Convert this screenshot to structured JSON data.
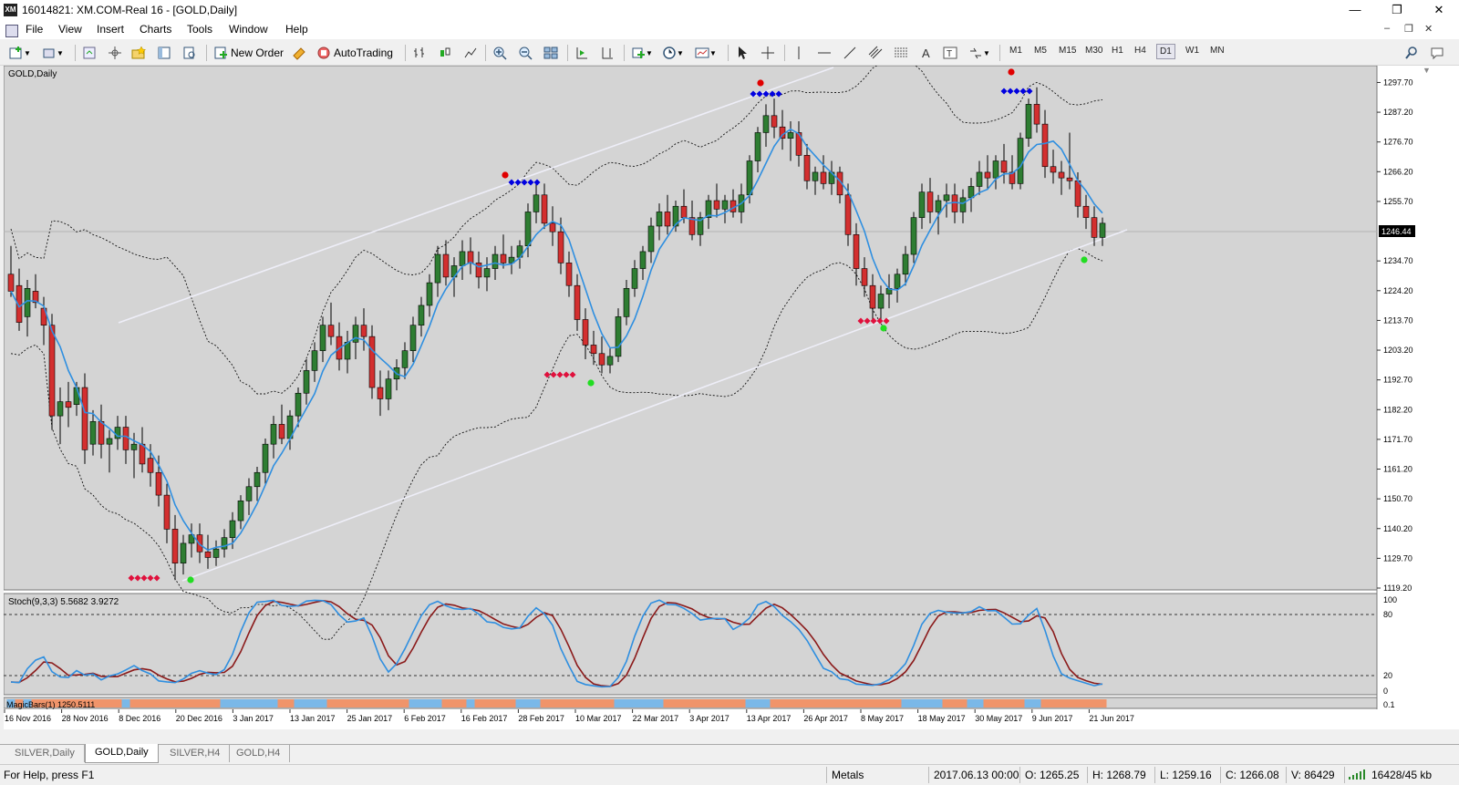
{
  "window": {
    "title": "16014821: XM.COM-Real 16 - [GOLD,Daily]",
    "logo": "XM",
    "minimize_icon": "—",
    "maximize_icon": "❐",
    "close_icon": "✕"
  },
  "menu": {
    "items": [
      "File",
      "View",
      "Insert",
      "Charts",
      "Tools",
      "Window",
      "Help"
    ]
  },
  "toolbar": {
    "new_order_label": "New Order",
    "autotrading_label": "AutoTrading",
    "timeframes": [
      "M1",
      "M5",
      "M15",
      "M30",
      "H1",
      "H4",
      "D1",
      "W1",
      "MN"
    ],
    "active_timeframe": "D1"
  },
  "chart": {
    "symbol_label": "GOLD,Daily",
    "current_price_label": "1246.44",
    "price_ticks": [
      "1297.70",
      "1287.20",
      "1276.70",
      "1266.20",
      "1255.70",
      "1246.44",
      "1234.70",
      "1224.20",
      "1213.70",
      "1203.20",
      "1192.70",
      "1182.20",
      "1171.70",
      "1161.20",
      "1150.70",
      "1140.20",
      "1129.70",
      "1119.20"
    ],
    "date_ticks": [
      "16 Nov 2016",
      "28 Nov 2016",
      "8 Dec 2016",
      "20 Dec 2016",
      "3 Jan 2017",
      "13 Jan 2017",
      "25 Jan 2017",
      "6 Feb 2017",
      "16 Feb 2017",
      "28 Feb 2017",
      "10 Mar 2017",
      "22 Mar 2017",
      "3 Apr 2017",
      "13 Apr 2017",
      "26 Apr 2017",
      "8 May 2017",
      "18 May 2017",
      "30 May 2017",
      "9 Jun 2017",
      "21 Jun 2017"
    ],
    "colors": {
      "bg": "#d4d4d4",
      "bull": "#2e7d32",
      "bear": "#d32f2f",
      "ma": "#2f8fe0",
      "stoch_main": "#2f8fe0",
      "stoch_signal": "#8b1a1a",
      "channel": "#eeeef8",
      "dot_red": "#e00000",
      "dot_green": "#22dd22",
      "diamond_blue": "#0000e0",
      "diamond_red": "#e0103c"
    }
  },
  "stoch": {
    "label": "Stoch(9,3,3) 5.5682 3.9272",
    "level_ticks": [
      "100",
      "80",
      "20",
      "0"
    ]
  },
  "magicbars": {
    "label": "MagicBars(1) 1250.5111",
    "level_label": "0.1"
  },
  "tabs": [
    "SILVER,Daily",
    "GOLD,Daily",
    "SILVER,H4",
    "GOLD,H4"
  ],
  "active_tab": "GOLD,Daily",
  "status": {
    "help": "For Help, press F1",
    "group": "Metals",
    "datetime": "2017.06.13 00:00",
    "open": "O: 1265.25",
    "high": "H: 1268.79",
    "low": "L: 1259.16",
    "close": "C: 1266.08",
    "volume": "V: 86429",
    "traffic": "16428/45 kb"
  },
  "chart_data": {
    "type": "candlestick",
    "title": "GOLD,Daily",
    "ylim": [
      1119.2,
      1303
    ],
    "candles": [
      [
        1230,
        1240,
        1222,
        1224
      ],
      [
        1226,
        1232,
        1210,
        1213
      ],
      [
        1215,
        1228,
        1208,
        1225
      ],
      [
        1224,
        1230,
        1218,
        1220
      ],
      [
        1218,
        1222,
        1205,
        1212
      ],
      [
        1212,
        1216,
        1175,
        1180
      ],
      [
        1180,
        1190,
        1170,
        1185
      ],
      [
        1185,
        1192,
        1176,
        1183
      ],
      [
        1184,
        1192,
        1180,
        1190
      ],
      [
        1190,
        1195,
        1163,
        1168
      ],
      [
        1170,
        1182,
        1166,
        1178
      ],
      [
        1178,
        1184,
        1165,
        1170
      ],
      [
        1170,
        1175,
        1160,
        1172
      ],
      [
        1172,
        1180,
        1168,
        1176
      ],
      [
        1176,
        1180,
        1163,
        1168
      ],
      [
        1168,
        1174,
        1158,
        1170
      ],
      [
        1170,
        1176,
        1160,
        1163
      ],
      [
        1165,
        1170,
        1155,
        1160
      ],
      [
        1160,
        1166,
        1148,
        1152
      ],
      [
        1152,
        1156,
        1135,
        1140
      ],
      [
        1140,
        1145,
        1122,
        1128
      ],
      [
        1128,
        1138,
        1124,
        1135
      ],
      [
        1135,
        1142,
        1130,
        1138
      ],
      [
        1138,
        1142,
        1128,
        1132
      ],
      [
        1132,
        1138,
        1126,
        1130
      ],
      [
        1130,
        1136,
        1127,
        1133
      ],
      [
        1133,
        1140,
        1130,
        1137
      ],
      [
        1137,
        1146,
        1133,
        1143
      ],
      [
        1143,
        1152,
        1140,
        1150
      ],
      [
        1150,
        1158,
        1145,
        1155
      ],
      [
        1155,
        1162,
        1150,
        1160
      ],
      [
        1160,
        1172,
        1156,
        1170
      ],
      [
        1170,
        1180,
        1165,
        1177
      ],
      [
        1177,
        1184,
        1170,
        1172
      ],
      [
        1172,
        1182,
        1168,
        1180
      ],
      [
        1180,
        1190,
        1176,
        1188
      ],
      [
        1188,
        1200,
        1184,
        1196
      ],
      [
        1196,
        1206,
        1192,
        1203
      ],
      [
        1203,
        1215,
        1199,
        1212
      ],
      [
        1212,
        1220,
        1205,
        1208
      ],
      [
        1208,
        1213,
        1196,
        1200
      ],
      [
        1200,
        1210,
        1195,
        1206
      ],
      [
        1206,
        1215,
        1200,
        1212
      ],
      [
        1212,
        1218,
        1203,
        1208
      ],
      [
        1208,
        1212,
        1186,
        1190
      ],
      [
        1190,
        1196,
        1180,
        1186
      ],
      [
        1186,
        1196,
        1182,
        1193
      ],
      [
        1193,
        1200,
        1189,
        1197
      ],
      [
        1197,
        1206,
        1193,
        1203
      ],
      [
        1203,
        1215,
        1199,
        1212
      ],
      [
        1212,
        1222,
        1208,
        1219
      ],
      [
        1219,
        1230,
        1215,
        1227
      ],
      [
        1227,
        1240,
        1222,
        1237
      ],
      [
        1237,
        1242,
        1226,
        1229
      ],
      [
        1229,
        1236,
        1222,
        1233
      ],
      [
        1233,
        1242,
        1228,
        1238
      ],
      [
        1238,
        1243,
        1230,
        1234
      ],
      [
        1234,
        1238,
        1225,
        1229
      ],
      [
        1229,
        1236,
        1224,
        1232
      ],
      [
        1232,
        1240,
        1228,
        1237
      ],
      [
        1237,
        1244,
        1232,
        1234
      ],
      [
        1234,
        1240,
        1230,
        1236
      ],
      [
        1236,
        1242,
        1232,
        1240
      ],
      [
        1240,
        1255,
        1236,
        1252
      ],
      [
        1252,
        1262,
        1248,
        1258
      ],
      [
        1258,
        1262,
        1246,
        1248
      ],
      [
        1248,
        1254,
        1240,
        1245
      ],
      [
        1245,
        1250,
        1230,
        1234
      ],
      [
        1234,
        1238,
        1222,
        1226
      ],
      [
        1226,
        1230,
        1210,
        1214
      ],
      [
        1214,
        1218,
        1200,
        1205
      ],
      [
        1205,
        1210,
        1198,
        1202
      ],
      [
        1202,
        1208,
        1195,
        1198
      ],
      [
        1198,
        1204,
        1195,
        1201
      ],
      [
        1201,
        1218,
        1199,
        1215
      ],
      [
        1215,
        1228,
        1212,
        1225
      ],
      [
        1225,
        1235,
        1222,
        1232
      ],
      [
        1232,
        1240,
        1228,
        1238
      ],
      [
        1238,
        1250,
        1234,
        1247
      ],
      [
        1247,
        1255,
        1242,
        1252
      ],
      [
        1252,
        1258,
        1244,
        1247
      ],
      [
        1247,
        1256,
        1245,
        1254
      ],
      [
        1254,
        1260,
        1248,
        1250
      ],
      [
        1250,
        1256,
        1242,
        1244
      ],
      [
        1244,
        1252,
        1240,
        1250
      ],
      [
        1250,
        1258,
        1246,
        1256
      ],
      [
        1256,
        1262,
        1250,
        1253
      ],
      [
        1253,
        1258,
        1248,
        1256
      ],
      [
        1256,
        1260,
        1250,
        1252
      ],
      [
        1252,
        1262,
        1248,
        1258
      ],
      [
        1258,
        1272,
        1255,
        1270
      ],
      [
        1270,
        1282,
        1266,
        1280
      ],
      [
        1280,
        1290,
        1275,
        1286
      ],
      [
        1286,
        1292,
        1278,
        1282
      ],
      [
        1282,
        1288,
        1274,
        1278
      ],
      [
        1278,
        1284,
        1270,
        1280
      ],
      [
        1280,
        1284,
        1268,
        1272
      ],
      [
        1272,
        1276,
        1260,
        1263
      ],
      [
        1263,
        1268,
        1258,
        1266
      ],
      [
        1266,
        1272,
        1260,
        1262
      ],
      [
        1262,
        1270,
        1258,
        1266
      ],
      [
        1266,
        1268,
        1255,
        1258
      ],
      [
        1258,
        1262,
        1240,
        1244
      ],
      [
        1244,
        1248,
        1226,
        1232
      ],
      [
        1232,
        1236,
        1222,
        1226
      ],
      [
        1226,
        1230,
        1214,
        1218
      ],
      [
        1218,
        1226,
        1214,
        1223
      ],
      [
        1223,
        1230,
        1218,
        1225
      ],
      [
        1225,
        1232,
        1220,
        1230
      ],
      [
        1230,
        1240,
        1226,
        1237
      ],
      [
        1237,
        1252,
        1234,
        1250
      ],
      [
        1250,
        1262,
        1246,
        1259
      ],
      [
        1259,
        1264,
        1248,
        1252
      ],
      [
        1252,
        1258,
        1244,
        1256
      ],
      [
        1256,
        1262,
        1250,
        1258
      ],
      [
        1258,
        1262,
        1248,
        1252
      ],
      [
        1252,
        1260,
        1248,
        1257
      ],
      [
        1257,
        1264,
        1252,
        1261
      ],
      [
        1261,
        1270,
        1258,
        1266
      ],
      [
        1266,
        1272,
        1260,
        1264
      ],
      [
        1264,
        1272,
        1260,
        1270
      ],
      [
        1270,
        1276,
        1262,
        1266
      ],
      [
        1266,
        1272,
        1260,
        1262
      ],
      [
        1262,
        1280,
        1260,
        1278
      ],
      [
        1278,
        1292,
        1275,
        1290
      ],
      [
        1290,
        1296,
        1280,
        1283
      ],
      [
        1283,
        1288,
        1264,
        1268
      ],
      [
        1268,
        1274,
        1262,
        1266
      ],
      [
        1266,
        1270,
        1258,
        1264
      ],
      [
        1264,
        1280,
        1260,
        1263
      ],
      [
        1263,
        1266,
        1250,
        1254
      ],
      [
        1254,
        1258,
        1246,
        1250
      ],
      [
        1250,
        1254,
        1240,
        1243
      ],
      [
        1243,
        1250,
        1240,
        1248
      ]
    ]
  }
}
